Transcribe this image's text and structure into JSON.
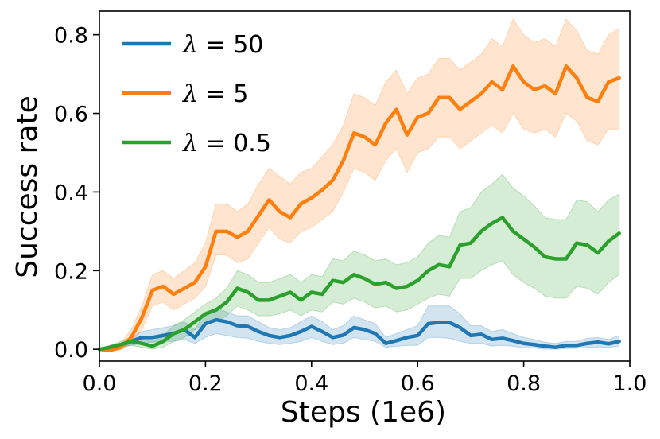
{
  "chart_data": {
    "type": "line",
    "xlabel": "Steps (1e6)",
    "ylabel": "Success rate",
    "xlim": [
      0.0,
      1.0
    ],
    "ylim": [
      -0.03,
      0.86
    ],
    "xticks": [
      "0.0",
      "0.2",
      "0.4",
      "0.6",
      "0.8",
      "1.0"
    ],
    "yticks": [
      "0.0",
      "0.2",
      "0.4",
      "0.6",
      "0.8"
    ],
    "grid": false,
    "legend_position": "top-left",
    "shaded_band": "min-max range",
    "series": [
      {
        "name": "λ = 50",
        "legend_prefix": "λ",
        "legend_suffix": " = 50",
        "color": "#1f77b4",
        "x": [
          0.0,
          0.02,
          0.04,
          0.06,
          0.08,
          0.1,
          0.12,
          0.14,
          0.16,
          0.18,
          0.2,
          0.22,
          0.24,
          0.26,
          0.28,
          0.3,
          0.32,
          0.34,
          0.36,
          0.38,
          0.4,
          0.42,
          0.44,
          0.46,
          0.48,
          0.5,
          0.52,
          0.54,
          0.56,
          0.58,
          0.6,
          0.62,
          0.64,
          0.66,
          0.68,
          0.7,
          0.72,
          0.74,
          0.76,
          0.78,
          0.8,
          0.82,
          0.84,
          0.86,
          0.88,
          0.9,
          0.92,
          0.94,
          0.96,
          0.98
        ],
        "y": [
          0.0,
          0.003,
          0.01,
          0.02,
          0.03,
          0.03,
          0.035,
          0.04,
          0.05,
          0.03,
          0.065,
          0.075,
          0.07,
          0.06,
          0.058,
          0.045,
          0.035,
          0.03,
          0.035,
          0.045,
          0.058,
          0.045,
          0.03,
          0.036,
          0.055,
          0.05,
          0.04,
          0.015,
          0.022,
          0.03,
          0.035,
          0.065,
          0.068,
          0.068,
          0.055,
          0.035,
          0.038,
          0.025,
          0.028,
          0.022,
          0.015,
          0.012,
          0.008,
          0.005,
          0.01,
          0.01,
          0.015,
          0.018,
          0.014,
          0.02
        ],
        "lower": [
          0.0,
          0.0,
          0.005,
          0.01,
          0.015,
          0.018,
          0.02,
          0.02,
          0.025,
          0.015,
          0.03,
          0.04,
          0.035,
          0.03,
          0.028,
          0.02,
          0.015,
          0.012,
          0.015,
          0.02,
          0.03,
          0.02,
          0.012,
          0.015,
          0.03,
          0.025,
          0.02,
          0.005,
          0.008,
          0.01,
          0.01,
          0.03,
          0.03,
          0.028,
          0.02,
          0.015,
          0.015,
          0.008,
          0.01,
          0.008,
          0.003,
          0.003,
          0.0,
          0.0,
          0.002,
          0.002,
          0.005,
          0.006,
          0.005,
          0.008
        ],
        "upper": [
          0.0,
          0.01,
          0.015,
          0.03,
          0.045,
          0.05,
          0.055,
          0.06,
          0.07,
          0.05,
          0.095,
          0.105,
          0.095,
          0.085,
          0.085,
          0.07,
          0.055,
          0.05,
          0.055,
          0.07,
          0.085,
          0.07,
          0.05,
          0.06,
          0.085,
          0.075,
          0.065,
          0.03,
          0.04,
          0.05,
          0.06,
          0.11,
          0.11,
          0.11,
          0.09,
          0.06,
          0.06,
          0.045,
          0.05,
          0.04,
          0.03,
          0.025,
          0.018,
          0.015,
          0.02,
          0.02,
          0.028,
          0.03,
          0.025,
          0.035
        ]
      },
      {
        "name": "λ = 5",
        "legend_prefix": "λ",
        "legend_suffix": " = 5",
        "color": "#ff7f0e",
        "x": [
          0.0,
          0.02,
          0.04,
          0.06,
          0.08,
          0.1,
          0.12,
          0.14,
          0.16,
          0.18,
          0.2,
          0.22,
          0.24,
          0.26,
          0.28,
          0.3,
          0.32,
          0.34,
          0.36,
          0.38,
          0.4,
          0.42,
          0.44,
          0.46,
          0.48,
          0.5,
          0.52,
          0.54,
          0.56,
          0.58,
          0.6,
          0.62,
          0.64,
          0.66,
          0.68,
          0.7,
          0.72,
          0.74,
          0.76,
          0.78,
          0.8,
          0.82,
          0.84,
          0.86,
          0.88,
          0.9,
          0.92,
          0.94,
          0.96,
          0.98
        ],
        "y": [
          0.0,
          -0.003,
          0.005,
          0.03,
          0.08,
          0.15,
          0.16,
          0.14,
          0.155,
          0.17,
          0.21,
          0.3,
          0.3,
          0.285,
          0.3,
          0.34,
          0.38,
          0.35,
          0.335,
          0.37,
          0.385,
          0.405,
          0.43,
          0.48,
          0.55,
          0.54,
          0.52,
          0.575,
          0.61,
          0.545,
          0.59,
          0.6,
          0.64,
          0.64,
          0.61,
          0.63,
          0.65,
          0.68,
          0.66,
          0.72,
          0.68,
          0.66,
          0.67,
          0.65,
          0.72,
          0.69,
          0.64,
          0.63,
          0.68,
          0.69
        ],
        "lower": [
          0.0,
          -0.005,
          -0.002,
          0.015,
          0.05,
          0.11,
          0.12,
          0.1,
          0.115,
          0.13,
          0.16,
          0.24,
          0.24,
          0.22,
          0.23,
          0.27,
          0.31,
          0.28,
          0.27,
          0.3,
          0.31,
          0.33,
          0.35,
          0.4,
          0.46,
          0.45,
          0.43,
          0.48,
          0.51,
          0.45,
          0.5,
          0.51,
          0.54,
          0.54,
          0.51,
          0.53,
          0.55,
          0.57,
          0.55,
          0.6,
          0.56,
          0.55,
          0.56,
          0.54,
          0.6,
          0.58,
          0.53,
          0.52,
          0.56,
          0.56
        ],
        "upper": [
          0.0,
          0.002,
          0.015,
          0.05,
          0.11,
          0.19,
          0.2,
          0.18,
          0.2,
          0.22,
          0.27,
          0.37,
          0.37,
          0.35,
          0.37,
          0.42,
          0.46,
          0.44,
          0.42,
          0.45,
          0.46,
          0.49,
          0.52,
          0.57,
          0.65,
          0.64,
          0.62,
          0.68,
          0.71,
          0.65,
          0.69,
          0.7,
          0.74,
          0.74,
          0.71,
          0.73,
          0.75,
          0.79,
          0.77,
          0.84,
          0.8,
          0.78,
          0.79,
          0.77,
          0.84,
          0.81,
          0.76,
          0.75,
          0.8,
          0.815
        ]
      },
      {
        "name": "λ = 0.5",
        "legend_prefix": "λ",
        "legend_suffix": " = 0.5",
        "color": "#2ca02c",
        "x": [
          0.0,
          0.02,
          0.04,
          0.06,
          0.08,
          0.1,
          0.12,
          0.14,
          0.16,
          0.18,
          0.2,
          0.22,
          0.24,
          0.26,
          0.28,
          0.3,
          0.32,
          0.34,
          0.36,
          0.38,
          0.4,
          0.42,
          0.44,
          0.46,
          0.48,
          0.5,
          0.52,
          0.54,
          0.56,
          0.58,
          0.6,
          0.62,
          0.64,
          0.66,
          0.68,
          0.7,
          0.72,
          0.74,
          0.76,
          0.78,
          0.8,
          0.82,
          0.84,
          0.86,
          0.88,
          0.9,
          0.92,
          0.94,
          0.96,
          0.98
        ],
        "y": [
          0.0,
          0.005,
          0.012,
          0.02,
          0.015,
          0.008,
          0.02,
          0.04,
          0.05,
          0.07,
          0.09,
          0.1,
          0.12,
          0.155,
          0.145,
          0.125,
          0.125,
          0.135,
          0.145,
          0.125,
          0.145,
          0.14,
          0.175,
          0.17,
          0.19,
          0.18,
          0.165,
          0.17,
          0.155,
          0.16,
          0.175,
          0.2,
          0.215,
          0.21,
          0.265,
          0.27,
          0.3,
          0.32,
          0.335,
          0.3,
          0.28,
          0.26,
          0.235,
          0.23,
          0.23,
          0.27,
          0.265,
          0.245,
          0.275,
          0.295
        ],
        "lower": [
          0.0,
          0.0,
          0.005,
          0.01,
          0.005,
          0.0,
          0.005,
          0.02,
          0.03,
          0.05,
          0.065,
          0.07,
          0.085,
          0.11,
          0.1,
          0.085,
          0.085,
          0.09,
          0.1,
          0.085,
          0.1,
          0.095,
          0.12,
          0.115,
          0.13,
          0.12,
          0.105,
          0.11,
          0.095,
          0.1,
          0.115,
          0.13,
          0.14,
          0.135,
          0.18,
          0.18,
          0.2,
          0.215,
          0.225,
          0.19,
          0.17,
          0.155,
          0.135,
          0.13,
          0.13,
          0.16,
          0.155,
          0.14,
          0.17,
          0.19
        ],
        "upper": [
          0.0,
          0.01,
          0.02,
          0.03,
          0.025,
          0.02,
          0.035,
          0.06,
          0.075,
          0.095,
          0.115,
          0.13,
          0.155,
          0.2,
          0.19,
          0.17,
          0.17,
          0.18,
          0.19,
          0.17,
          0.19,
          0.185,
          0.23,
          0.225,
          0.25,
          0.24,
          0.225,
          0.23,
          0.215,
          0.22,
          0.235,
          0.27,
          0.29,
          0.285,
          0.35,
          0.36,
          0.4,
          0.42,
          0.445,
          0.41,
          0.39,
          0.365,
          0.335,
          0.33,
          0.33,
          0.38,
          0.375,
          0.35,
          0.38,
          0.395
        ]
      }
    ]
  }
}
